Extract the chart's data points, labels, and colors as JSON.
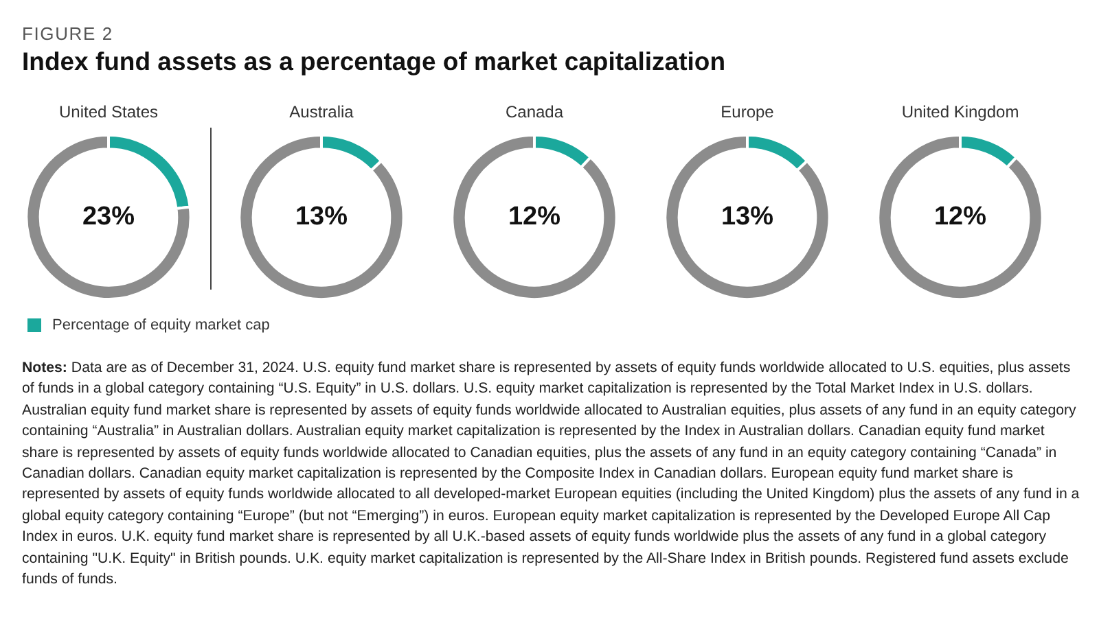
{
  "chart_data": [
    {
      "type": "donut",
      "title": "United States",
      "categories": [
        "Percentage of equity market cap",
        null
      ],
      "values": [
        23,
        77
      ],
      "colors": [
        "#1ba89c",
        "#8c8c8c"
      ],
      "value_labels": [
        "23%",
        null
      ],
      "legend": "bottom",
      "annotations": [
        "FIGURE 2",
        "Index fund assets as a percentage of market capitalization",
        "Notes: Data are as of December 31, 2024. U.S. equity fund market share is represented by assets of equity funds worldwide allocated to U.S. equities, plus assets of funds in a global category containing “U.S. Equity” in U.S. dollars. U.S. equity market capitalization is represented by the Total Market Index in U.S. dollars. Australian equity fund market share is represented by assets of equity funds worldwide allocated to Australian equities, plus assets of any fund in an equity category containing “Australia” in Australian dollars. Australian equity market capitalization is represented by the Index in Australian dollars. Canadian equity fund market share is represented by assets of equity funds worldwide allocated to Canadian equities, plus the assets of any fund in an equity category containing “Canada” in Canadian dollars. Canadian equity market capitalization is represented by the Composite Index in Canadian dollars. European equity fund market share is represented by assets of equity funds worldwide allocated to all developed-market European equities (including the United Kingdom) plus the assets of any fund in a global equity category containing “Europe” (but not “Emerging”) in euros. European equity market capitalization is represented by the Developed Europe All Cap Index in euros. U.K. equity fund market share is represented by all U.K.-based assets of equity funds worldwide plus the assets of any fund in a global category containing \"U.K. Equity\" in British pounds. U.K. equity market capitalization is represented by the All-Share Index in British pounds. Registered fund assets exclude funds of funds."
      ]
    },
    {
      "type": "donut",
      "title": "Australia",
      "categories": [
        null,
        null
      ],
      "values": [
        13,
        87
      ],
      "colors": [
        "#1ba89c",
        "#8c8c8c"
      ],
      "value_labels": [
        "13%",
        null
      ]
    },
    {
      "type": "donut",
      "title": "Canada",
      "categories": [
        null,
        null
      ],
      "values": [
        12,
        88
      ],
      "colors": [
        "#1ba89c",
        "#8c8c8c"
      ],
      "value_labels": [
        "12%",
        null
      ]
    },
    {
      "type": "donut",
      "title": "Europe",
      "categories": [
        null,
        null
      ],
      "values": [
        13,
        87
      ],
      "colors": [
        "#1ba89c",
        "#8c8c8c"
      ],
      "value_labels": [
        "13%",
        null
      ]
    },
    {
      "type": "donut",
      "title": "United Kingdom",
      "categories": [
        null,
        null
      ],
      "values": [
        12,
        88
      ],
      "colors": [
        "#1ba89c",
        "#8c8c8c"
      ],
      "value_labels": [
        "12%",
        null
      ]
    }
  ]
}
